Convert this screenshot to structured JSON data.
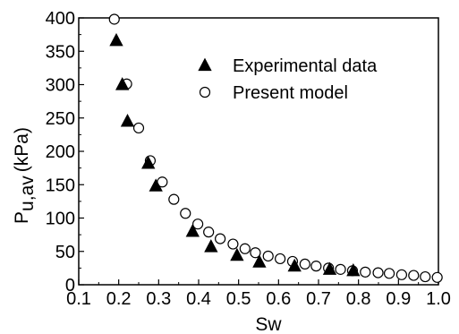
{
  "chart_data": {
    "type": "scatter",
    "xlabel": "Sw",
    "ylabel": "P",
    "ylabel_subscript": "u,av",
    "ylabel_unit": "(kPa)",
    "xlim": [
      0.1,
      1.0
    ],
    "ylim": [
      0,
      400
    ],
    "xticks": [
      0.1,
      0.2,
      0.3,
      0.4,
      0.5,
      0.6,
      0.7,
      0.8,
      0.9,
      1.0
    ],
    "xtick_labels": [
      "0.1",
      "0.2",
      "0.3",
      "0.4",
      "0.5",
      "0.6",
      "0.7",
      "0.8",
      "0.9",
      "1.0"
    ],
    "yticks": [
      0,
      50,
      100,
      150,
      200,
      250,
      300,
      350,
      400
    ],
    "ytick_labels": [
      "0",
      "50",
      "100",
      "150",
      "200",
      "250",
      "300",
      "350",
      "400"
    ],
    "grid": false,
    "legend_position": "top-right",
    "series": [
      {
        "name": "Experimental data",
        "marker": "filled-triangle",
        "color": "#000000",
        "x": [
          0.194,
          0.209,
          0.222,
          0.274,
          0.293,
          0.385,
          0.431,
          0.496,
          0.552,
          0.64,
          0.728,
          0.787
        ],
        "y": [
          366,
          300,
          245,
          182,
          148,
          80,
          57,
          44,
          34,
          28,
          23,
          21
        ]
      },
      {
        "name": "Present model",
        "marker": "open-circle",
        "color": "#000000",
        "x": [
          0.189,
          0.22,
          0.25,
          0.279,
          0.309,
          0.338,
          0.367,
          0.398,
          0.425,
          0.454,
          0.486,
          0.516,
          0.542,
          0.574,
          0.604,
          0.635,
          0.666,
          0.694,
          0.725,
          0.755,
          0.785,
          0.817,
          0.849,
          0.877,
          0.908,
          0.938,
          0.967,
          0.997
        ],
        "y": [
          398,
          301,
          235,
          186,
          154,
          128,
          107,
          91,
          79,
          69,
          61,
          54,
          48,
          43,
          39,
          35,
          31,
          28,
          25,
          23,
          21,
          19,
          18,
          17,
          15,
          14,
          12,
          11
        ]
      }
    ]
  }
}
